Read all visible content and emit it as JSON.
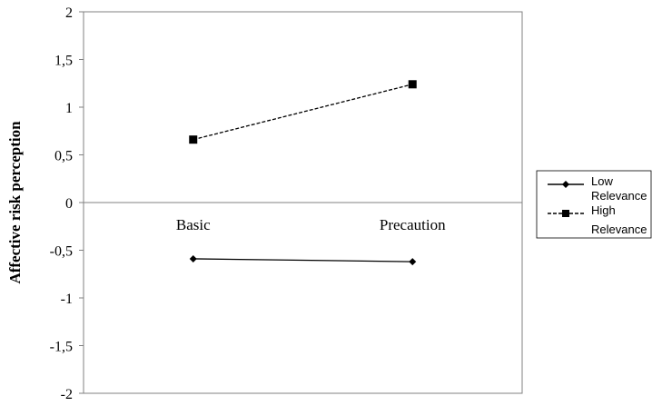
{
  "chart_data": {
    "type": "line",
    "categories": [
      "Basic",
      "Precaution"
    ],
    "series": [
      {
        "name": "Low Relevance",
        "values": [
          -0.59,
          -0.62
        ],
        "line": "solid",
        "marker": "diamond"
      },
      {
        "name": "High Relevance",
        "values": [
          0.66,
          1.24
        ],
        "line": "dashed",
        "marker": "square"
      }
    ],
    "ylabel": "Affective risk perception",
    "xlabel": "",
    "ylim": [
      -2,
      2
    ],
    "yticks": [
      "-2",
      "-1,5",
      "-1",
      "-0,5",
      "0",
      "0,5",
      "1",
      "1,5",
      "2"
    ],
    "grid": false,
    "legend_position": "right"
  }
}
